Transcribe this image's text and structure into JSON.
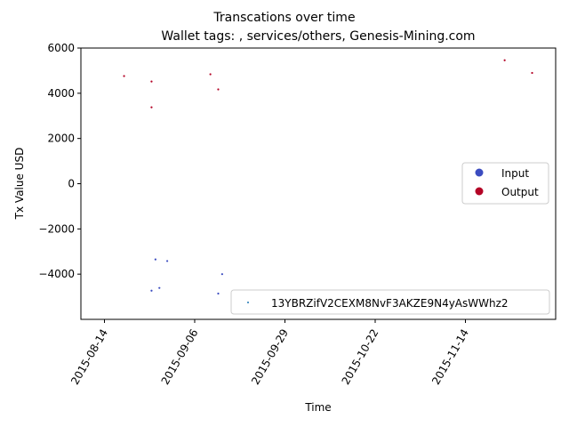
{
  "chart_data": {
    "type": "scatter",
    "title": "Transcations over time",
    "subtitle": "Wallet tags: , services/others, Genesis-Mining.com",
    "xlabel": "Time",
    "ylabel": "Tx Value USD",
    "ylim": [
      -6000,
      6000
    ],
    "yticks": [
      -4000,
      -2000,
      0,
      2000,
      4000,
      6000
    ],
    "xlim": [
      "2015-08-08",
      "2015-12-07"
    ],
    "xticks": [
      "2015-08-14",
      "2015-09-06",
      "2015-09-29",
      "2015-10-22",
      "2015-11-14"
    ],
    "grid": false,
    "legend_placement": "center-right",
    "series": [
      {
        "name": "Input",
        "color": "#3b4cc0",
        "points": [
          {
            "x": "2015-08-27",
            "y": -3350
          },
          {
            "x": "2015-08-30",
            "y": -3420
          },
          {
            "x": "2015-08-26",
            "y": -4730
          },
          {
            "x": "2015-08-28",
            "y": -4610
          },
          {
            "x": "2015-09-12",
            "y": -4860
          },
          {
            "x": "2015-09-13",
            "y": -4000
          }
        ]
      },
      {
        "name": "Output",
        "color": "#b40426",
        "points": [
          {
            "x": "2015-08-19",
            "y": 4760
          },
          {
            "x": "2015-08-26",
            "y": 4520
          },
          {
            "x": "2015-08-26",
            "y": 3380
          },
          {
            "x": "2015-09-10",
            "y": 4840
          },
          {
            "x": "2015-09-12",
            "y": 4170
          },
          {
            "x": "2015-11-24",
            "y": 5460
          },
          {
            "x": "2015-12-01",
            "y": 4900
          }
        ]
      }
    ],
    "address_legend": {
      "label": "13YBRZifV2CEXM8NvF3AKZE9N4yAsWWhz2",
      "color": "#1f77b4"
    }
  }
}
